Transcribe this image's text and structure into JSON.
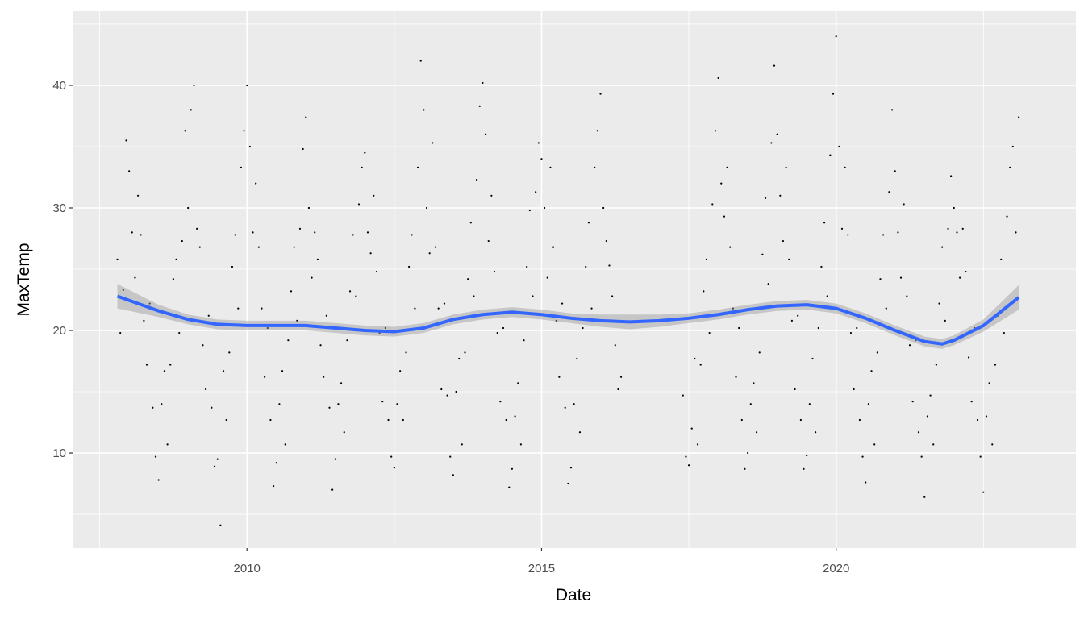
{
  "chart_data": {
    "type": "scatter",
    "x_label": "Date",
    "y_label": "MaxTemp",
    "xlim": [
      2007.04,
      2024.07
    ],
    "ylim": [
      2.24,
      46.05
    ],
    "xticks": [
      2010,
      2015,
      2020
    ],
    "yticks": [
      10,
      20,
      30,
      40
    ],
    "x_minor_grid": [
      2007.5,
      2012.5,
      2017.5,
      2022.5
    ],
    "y_minor_grid": [
      5,
      15,
      25,
      35,
      45
    ],
    "grid": true,
    "point_color": "#000000",
    "x": [
      2007.8,
      2007.85,
      2007.9,
      2007.95,
      2008.0,
      2008.05,
      2008.1,
      2008.15,
      2008.2,
      2008.25,
      2008.3,
      2008.35,
      2008.4,
      2008.45,
      2008.5,
      2008.55,
      2008.6,
      2008.65,
      2008.7,
      2008.75,
      2008.8,
      2008.85,
      2008.9,
      2008.95,
      2009.0,
      2009.05,
      2009.1,
      2009.15,
      2009.2,
      2009.25,
      2009.3,
      2009.35,
      2009.4,
      2009.45,
      2009.5,
      2009.55,
      2009.6,
      2009.65,
      2009.7,
      2009.75,
      2009.8,
      2009.85,
      2009.9,
      2009.95,
      2010.0,
      2010.05,
      2010.1,
      2010.15,
      2010.2,
      2010.25,
      2010.3,
      2010.35,
      2010.4,
      2010.45,
      2010.5,
      2010.55,
      2010.6,
      2010.65,
      2010.7,
      2010.75,
      2010.8,
      2010.85,
      2010.9,
      2010.95,
      2011.0,
      2011.05,
      2011.1,
      2011.15,
      2011.2,
      2011.25,
      2011.3,
      2011.35,
      2011.4,
      2011.45,
      2011.5,
      2011.55,
      2011.6,
      2011.65,
      2011.7,
      2011.75,
      2011.8,
      2011.85,
      2011.9,
      2011.95,
      2012.0,
      2012.05,
      2012.1,
      2012.15,
      2012.2,
      2012.25,
      2012.3,
      2012.35,
      2012.4,
      2012.45,
      2012.5,
      2012.55,
      2012.6,
      2012.65,
      2012.7,
      2012.75,
      2012.8,
      2012.85,
      2012.9,
      2012.95,
      2013.0,
      2013.05,
      2013.1,
      2013.15,
      2013.2,
      2013.25,
      2013.3,
      2013.35,
      2013.4,
      2013.45,
      2013.5,
      2013.55,
      2013.6,
      2013.65,
      2013.7,
      2013.75,
      2013.8,
      2013.85,
      2013.9,
      2013.95,
      2014.0,
      2014.05,
      2014.1,
      2014.15,
      2014.2,
      2014.25,
      2014.3,
      2014.35,
      2014.4,
      2014.45,
      2014.5,
      2014.55,
      2014.6,
      2014.65,
      2014.7,
      2014.75,
      2014.8,
      2014.85,
      2014.9,
      2014.95,
      2015.0,
      2015.05,
      2015.1,
      2015.15,
      2015.2,
      2015.25,
      2015.3,
      2015.35,
      2015.4,
      2015.45,
      2015.5,
      2015.55,
      2015.6,
      2015.65,
      2015.7,
      2015.75,
      2015.8,
      2015.85,
      2015.9,
      2015.95,
      2016.0,
      2016.05,
      2016.1,
      2016.15,
      2016.2,
      2016.25,
      2016.3,
      2016.35,
      2017.4,
      2017.45,
      2017.5,
      2017.55,
      2017.6,
      2017.65,
      2017.7,
      2017.75,
      2017.8,
      2017.85,
      2017.9,
      2017.95,
      2018.0,
      2018.05,
      2018.1,
      2018.15,
      2018.2,
      2018.25,
      2018.3,
      2018.35,
      2018.4,
      2018.45,
      2018.5,
      2018.55,
      2018.6,
      2018.65,
      2018.7,
      2018.75,
      2018.8,
      2018.85,
      2018.9,
      2018.95,
      2019.0,
      2019.05,
      2019.1,
      2019.15,
      2019.2,
      2019.25,
      2019.3,
      2019.35,
      2019.4,
      2019.45,
      2019.5,
      2019.55,
      2019.6,
      2019.65,
      2019.7,
      2019.75,
      2019.8,
      2019.85,
      2019.9,
      2019.95,
      2020.0,
      2020.05,
      2020.1,
      2020.15,
      2020.2,
      2020.25,
      2020.3,
      2020.35,
      2020.4,
      2020.45,
      2020.5,
      2020.55,
      2020.6,
      2020.65,
      2020.7,
      2020.75,
      2020.8,
      2020.85,
      2020.9,
      2020.95,
      2021.0,
      2021.05,
      2021.1,
      2021.15,
      2021.2,
      2021.25,
      2021.3,
      2021.35,
      2021.4,
      2021.45,
      2021.5,
      2021.55,
      2021.6,
      2021.65,
      2021.7,
      2021.75,
      2021.8,
      2021.85,
      2021.9,
      2021.95,
      2022.0,
      2022.05,
      2022.1,
      2022.15,
      2022.2,
      2022.25,
      2022.3,
      2022.35,
      2022.4,
      2022.45,
      2022.5,
      2022.55,
      2022.6,
      2022.65,
      2022.7,
      2022.75,
      2022.8,
      2022.85,
      2022.9,
      2022.95,
      2023.0,
      2023.05,
      2023.1
    ],
    "values": [
      25.8,
      19.8,
      23.3,
      35.5,
      33,
      28,
      24.3,
      31,
      27.8,
      20.8,
      17.2,
      22.2,
      13.7,
      9.7,
      7.8,
      14,
      16.7,
      10.7,
      17.2,
      24.2,
      25.8,
      19.8,
      27.3,
      36.3,
      30,
      38,
      40,
      28.3,
      26.8,
      18.8,
      15.2,
      21.2,
      13.7,
      8.9,
      9.5,
      4.1,
      16.7,
      12.7,
      18.2,
      25.2,
      27.8,
      21.8,
      33.3,
      36.3,
      40,
      35,
      28,
      32,
      26.8,
      21.8,
      16.2,
      20.2,
      12.7,
      7.3,
      9.2,
      14,
      16.7,
      10.7,
      19.2,
      23.2,
      26.8,
      20.8,
      28.3,
      34.8,
      37.4,
      30,
      24.3,
      28,
      25.8,
      18.8,
      16.2,
      21.2,
      13.7,
      7,
      9.5,
      14,
      15.7,
      11.7,
      19.2,
      23.2,
      27.8,
      22.8,
      30.3,
      33.3,
      34.5,
      28,
      26.3,
      31,
      24.8,
      19.8,
      14.2,
      20.2,
      12.7,
      9.7,
      8.8,
      14,
      16.7,
      12.7,
      18.2,
      25.2,
      27.8,
      21.8,
      33.3,
      42,
      38,
      30,
      26.3,
      35.3,
      26.8,
      21.8,
      15.2,
      22.2,
      14.7,
      9.7,
      8.2,
      15,
      17.7,
      10.7,
      18.2,
      24.2,
      28.8,
      22.8,
      32.3,
      38.3,
      40.2,
      36,
      27.3,
      31,
      24.8,
      19.8,
      14.2,
      20.2,
      12.7,
      7.2,
      8.7,
      13,
      15.7,
      10.7,
      19.2,
      25.2,
      29.8,
      22.8,
      31.3,
      35.3,
      34,
      30,
      24.3,
      33.3,
      26.8,
      20.8,
      16.2,
      22.2,
      13.7,
      7.5,
      8.8,
      14,
      17.7,
      11.7,
      20.2,
      25.2,
      28.8,
      21.8,
      33.3,
      36.3,
      39.3,
      30,
      27.3,
      25.3,
      22.8,
      18.8,
      15.2,
      16.2,
      14.7,
      9.7,
      9,
      12,
      17.7,
      10.7,
      17.2,
      23.2,
      25.8,
      19.8,
      30.3,
      36.3,
      40.6,
      32,
      29.3,
      33.3,
      26.8,
      21.8,
      16.2,
      20.2,
      12.7,
      8.7,
      10,
      14,
      15.7,
      11.7,
      18.2,
      26.2,
      30.8,
      23.8,
      35.3,
      41.6,
      36,
      31,
      27.3,
      33.3,
      25.8,
      20.8,
      15.2,
      21.2,
      12.7,
      8.7,
      9.8,
      14,
      17.7,
      11.7,
      20.2,
      25.2,
      28.8,
      22.8,
      34.3,
      39.3,
      44,
      35,
      28.3,
      33.3,
      27.8,
      19.8,
      15.2,
      20.2,
      12.7,
      9.7,
      7.6,
      14,
      16.7,
      10.7,
      18.2,
      24.2,
      27.8,
      21.8,
      31.3,
      38,
      33,
      28,
      24.3,
      30.3,
      22.8,
      18.8,
      14.2,
      19.2,
      11.7,
      9.7,
      6.4,
      13,
      14.7,
      10.7,
      17.2,
      22.2,
      26.8,
      20.8,
      28.3,
      32.6,
      30,
      28,
      24.3,
      28.3,
      24.8,
      17.8,
      14.2,
      20.2,
      12.7,
      9.7,
      6.8,
      13,
      15.7,
      10.7,
      17.2,
      21.2,
      25.8,
      19.8,
      29.3,
      33.3,
      35,
      28,
      37.4
    ],
    "smooth": {
      "color": "#3366ff",
      "band_color": "#999999",
      "x": [
        2007.8,
        2008.5,
        2009,
        2009.5,
        2010,
        2011,
        2011.5,
        2012,
        2012.5,
        2013,
        2013.5,
        2014,
        2014.5,
        2015,
        2015.5,
        2016,
        2016.5,
        2017,
        2017.5,
        2018,
        2018.5,
        2019,
        2019.5,
        2020,
        2020.5,
        2021,
        2021.5,
        2021.8,
        2022,
        2022.5,
        2023.1
      ],
      "values": [
        22.8,
        21.6,
        20.9,
        20.5,
        20.4,
        20.4,
        20.2,
        20.0,
        19.9,
        20.2,
        20.9,
        21.3,
        21.5,
        21.3,
        21.0,
        20.8,
        20.7,
        20.8,
        21.0,
        21.3,
        21.7,
        22.0,
        22.1,
        21.8,
        21.0,
        20.0,
        19.1,
        18.9,
        19.2,
        20.4,
        22.7
      ],
      "lower": [
        21.8,
        21.1,
        20.5,
        20.1,
        20.0,
        20.0,
        19.8,
        19.6,
        19.5,
        19.8,
        20.5,
        20.9,
        21.1,
        20.9,
        20.6,
        20.3,
        20.1,
        20.3,
        20.6,
        20.9,
        21.3,
        21.6,
        21.7,
        21.4,
        20.6,
        19.6,
        18.7,
        18.5,
        18.8,
        19.9,
        21.7
      ],
      "upper": [
        23.8,
        22.1,
        21.3,
        20.9,
        20.8,
        20.8,
        20.6,
        20.4,
        20.3,
        20.6,
        21.3,
        21.7,
        21.9,
        21.7,
        21.4,
        21.3,
        21.3,
        21.3,
        21.4,
        21.7,
        22.1,
        22.4,
        22.5,
        22.2,
        21.4,
        20.4,
        19.5,
        19.3,
        19.6,
        20.9,
        23.7
      ]
    }
  }
}
